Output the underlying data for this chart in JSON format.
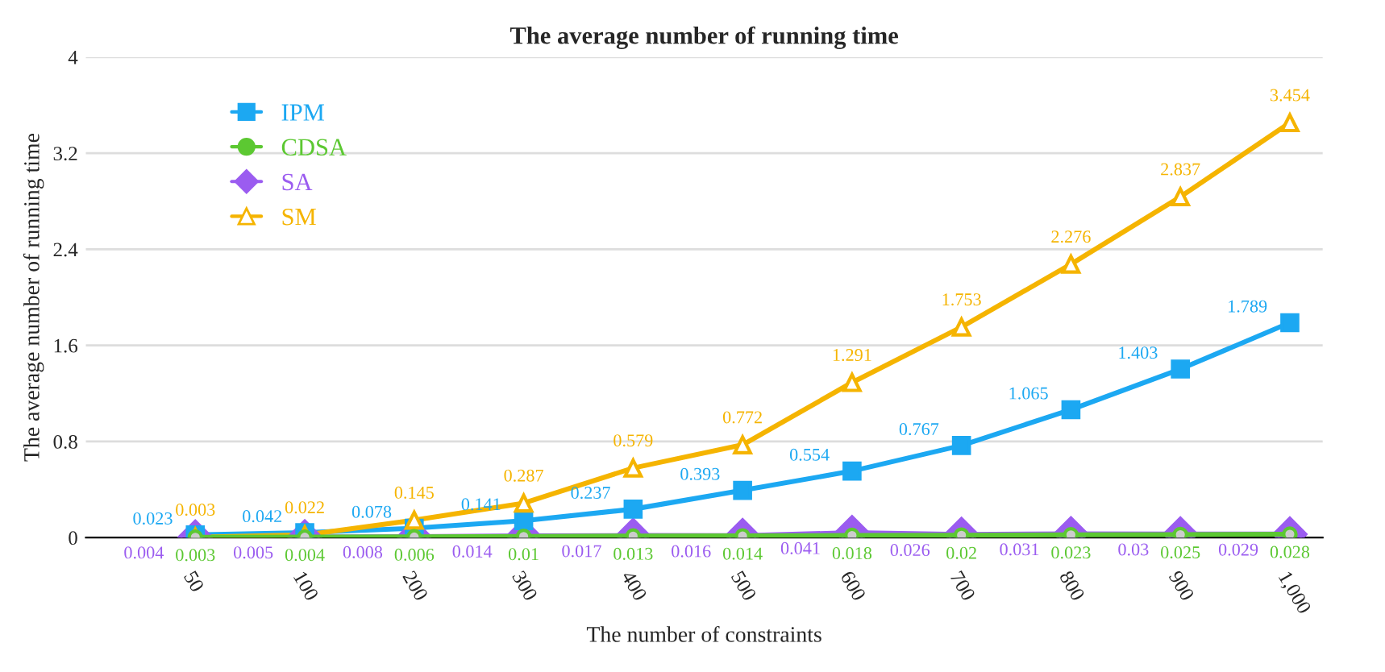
{
  "chart_data": {
    "type": "line",
    "title": "The average number of running time",
    "xlabel": "The number of constraints",
    "ylabel": "The average number of running time",
    "categories": [
      "50",
      "100",
      "200",
      "300",
      "400",
      "500",
      "600",
      "700",
      "800",
      "900",
      "1,000"
    ],
    "series": [
      {
        "name": "IPM",
        "color": "#1ca8f2",
        "marker": "square",
        "values": [
          0.023,
          0.042,
          0.078,
          0.141,
          0.237,
          0.393,
          0.554,
          0.767,
          1.065,
          1.403,
          1.789
        ]
      },
      {
        "name": "CDSA",
        "color": "#5cc832",
        "marker": "circle",
        "values": [
          0.003,
          0.004,
          0.006,
          0.01,
          0.013,
          0.014,
          0.018,
          0.02,
          0.023,
          0.025,
          0.028
        ]
      },
      {
        "name": "SA",
        "color": "#9b5cf0",
        "marker": "diamond",
        "values": [
          0.004,
          0.005,
          0.008,
          0.014,
          0.017,
          0.016,
          0.041,
          0.026,
          0.031,
          0.03,
          0.029
        ]
      },
      {
        "name": "SM",
        "color": "#f5b400",
        "marker": "triangle",
        "values": [
          0.003,
          0.022,
          0.145,
          0.287,
          0.579,
          0.772,
          1.291,
          1.753,
          2.276,
          2.837,
          3.454
        ]
      }
    ],
    "ylim": [
      0,
      4
    ],
    "yticks": [
      0,
      0.8,
      1.6,
      2.4,
      3.2,
      4
    ],
    "grid": "y",
    "legend": "top left",
    "data_labels": true,
    "line_style": "solid"
  }
}
